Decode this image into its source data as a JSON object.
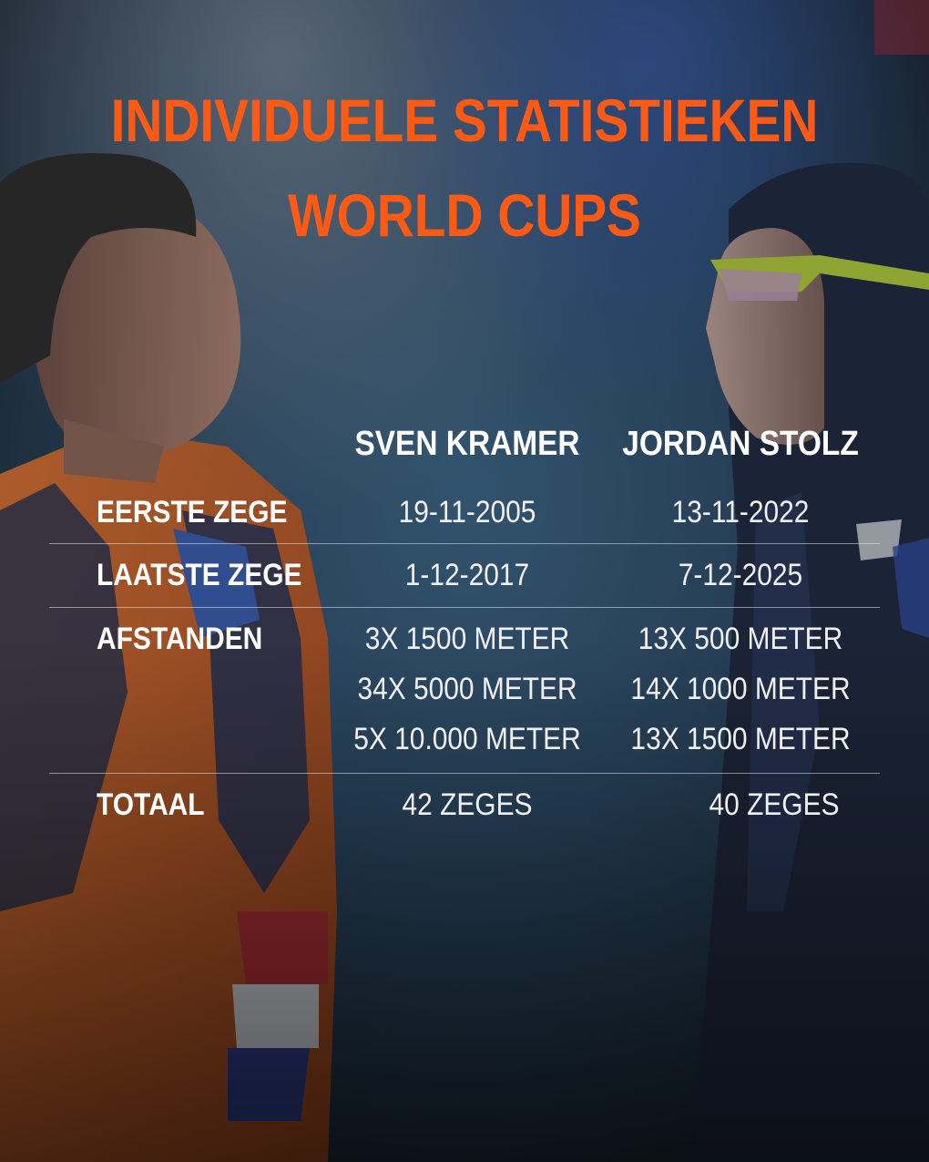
{
  "title": {
    "line1": "INDIVIDUELE STATISTIEKEN",
    "line2": "WORLD CUPS"
  },
  "columns": [
    "SVEN KRAMER",
    "JORDAN STOLZ"
  ],
  "rows": {
    "eerste_zege": {
      "label": "EERSTE ZEGE",
      "kramer": "19-11-2005",
      "stolz": "13-11-2022"
    },
    "laatste_zege": {
      "label": "LAATSTE ZEGE",
      "kramer": "1-12-2017",
      "stolz": "7-12-2025"
    },
    "afstanden": {
      "label": "AFSTANDEN",
      "kramer": [
        "3X 1500 METER",
        "34X 5000 METER",
        "5X 10.000 METER"
      ],
      "stolz": [
        "13X 500 METER",
        "14X 1000 METER",
        "13X 1500 METER"
      ]
    },
    "totaal": {
      "label": "TOTAAL",
      "kramer": "42 ZEGES",
      "stolz": "40 ZEGES"
    }
  },
  "colors": {
    "title": "#ff5a14",
    "kramer_suit": "#e8681e",
    "stolz_suit": "#1b2236",
    "background": "#2b4660"
  }
}
